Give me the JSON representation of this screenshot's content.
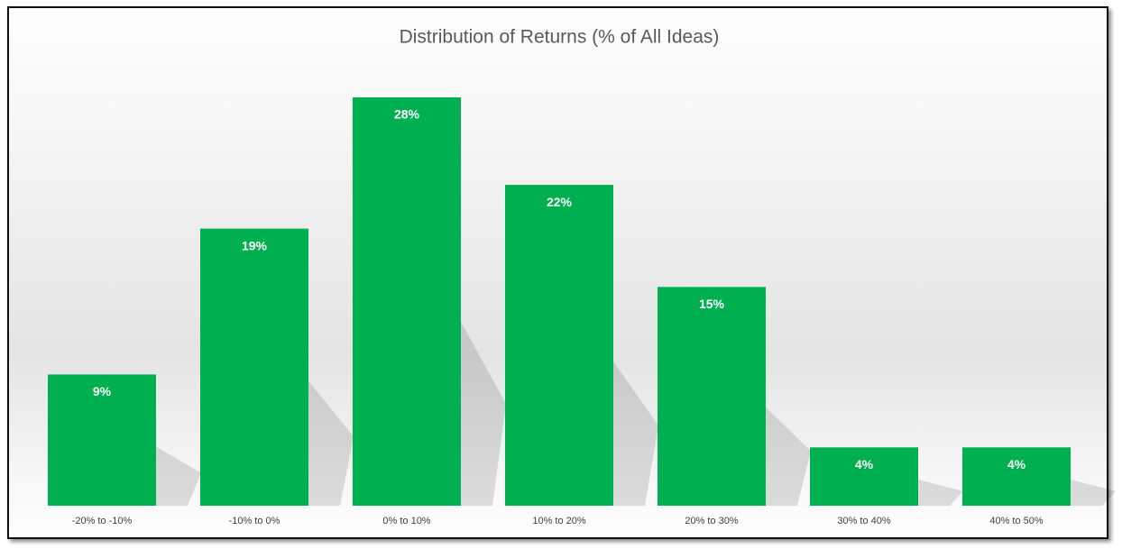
{
  "chart_data": {
    "type": "bar",
    "title": "Distribution of Returns (% of All Ideas)",
    "categories": [
      "-20% to -10%",
      "-10% to 0%",
      "0% to 10%",
      "10% to 20%",
      "20% to 30%",
      "30% to 40%",
      "40% to 50%"
    ],
    "values": [
      9,
      19,
      28,
      22,
      15,
      4,
      4
    ],
    "value_labels": [
      "9%",
      "19%",
      "28%",
      "22%",
      "15%",
      "4%",
      "4%"
    ],
    "color": "#00b050"
  }
}
